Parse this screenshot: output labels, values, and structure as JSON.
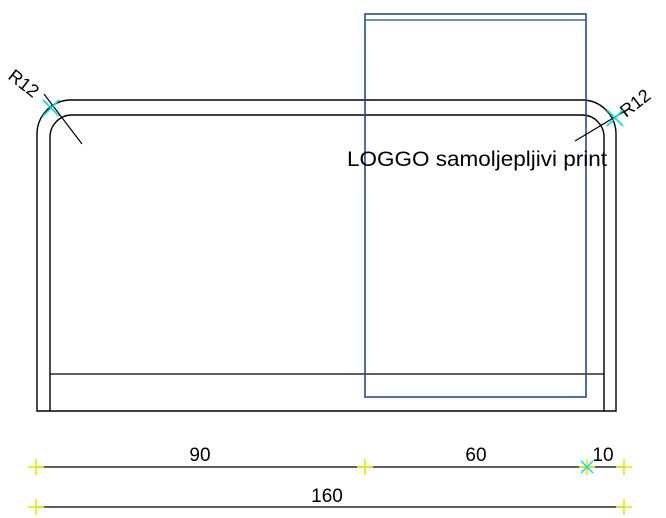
{
  "drawing": {
    "radius_left": "R12",
    "radius_right": "R12",
    "logo_note": "LOGGO  samoljepljivi print"
  },
  "dimensions": {
    "width_left": "90",
    "width_middle": "60",
    "width_right": "10",
    "width_total": "160"
  },
  "colors": {
    "outline": "#000000",
    "logo_frame": "#1f4e8c",
    "point_marker_cyan": "#00e0e0",
    "point_marker_yellow": "#e8e800"
  }
}
